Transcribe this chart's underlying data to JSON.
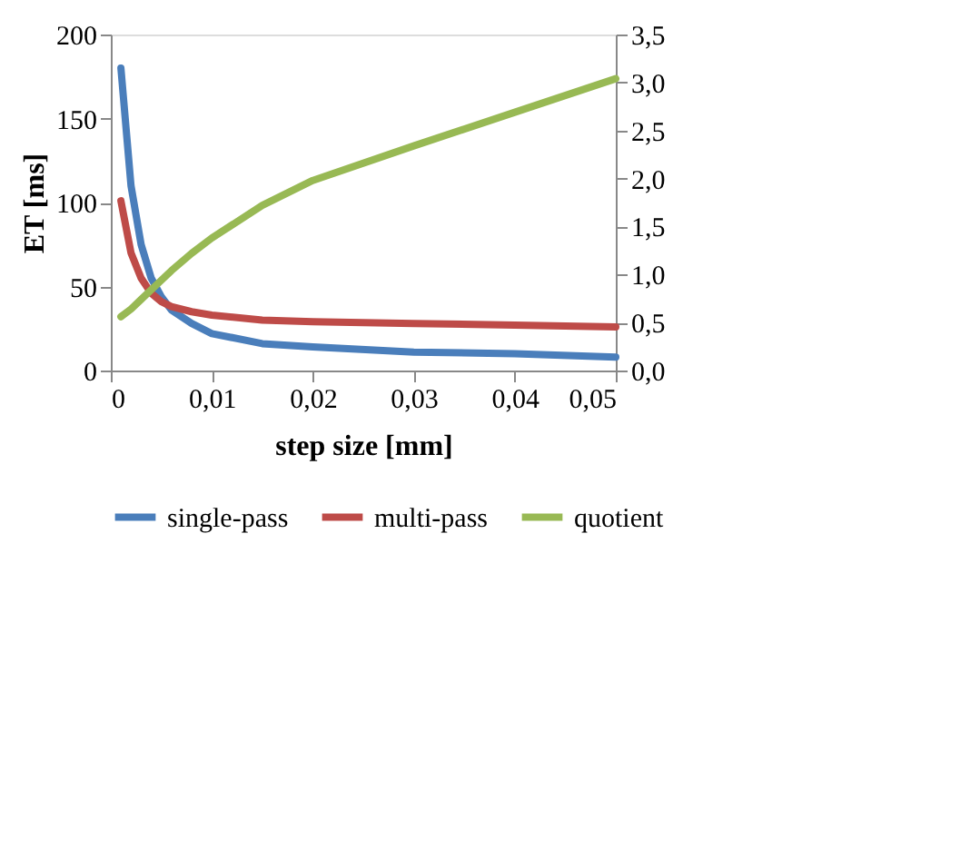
{
  "chart_data": {
    "type": "line",
    "xlabel": "step size [mm]",
    "ylabel": "ET [ms]",
    "x": [
      0.001,
      0.002,
      0.003,
      0.004,
      0.005,
      0.006,
      0.008,
      0.01,
      0.015,
      0.02,
      0.03,
      0.04,
      0.05
    ],
    "series": [
      {
        "name": "single-pass",
        "color": "#4a7ebb",
        "values": [
          180,
          110,
          75,
          55,
          44,
          36,
          28,
          22,
          16,
          14,
          11,
          10,
          8
        ]
      },
      {
        "name": "multi-pass",
        "color": "#be4b48",
        "values": [
          101,
          70,
          55,
          46,
          41,
          38,
          35,
          33,
          30,
          29,
          28,
          27,
          26
        ]
      },
      {
        "name": "quotient",
        "color": "#98b954",
        "axis": "y2",
        "values": [
          0.56,
          0.64,
          0.74,
          0.84,
          0.94,
          1.04,
          1.22,
          1.38,
          1.72,
          1.98,
          2.34,
          2.69,
          3.04
        ]
      }
    ],
    "xlim": [
      0,
      0.05
    ],
    "xticks": [
      0,
      {
        "value": 0.01,
        "label": "0,01"
      },
      {
        "value": 0.02,
        "label": "0,02"
      },
      {
        "value": 0.03,
        "label": "0,03"
      },
      {
        "value": 0.04,
        "label": "0,04"
      },
      {
        "value": 0.05,
        "label": "0,05"
      }
    ],
    "ylim": [
      0,
      200
    ],
    "yticks": [
      0,
      50,
      100,
      150,
      200
    ],
    "y2lim": [
      0,
      3.5
    ],
    "y2ticks": [
      {
        "value": 0,
        "label": "0,0"
      },
      {
        "value": 0.5,
        "label": "0,5"
      },
      {
        "value": 1,
        "label": "1,0"
      },
      {
        "value": 1.5,
        "label": "1,5"
      },
      {
        "value": 2,
        "label": "2,0"
      },
      {
        "value": 2.5,
        "label": "2,5"
      },
      {
        "value": 3,
        "label": "3,0"
      },
      {
        "value": 3.5,
        "label": "3,5"
      }
    ],
    "grid": false,
    "legend": "bottom",
    "marker": "none",
    "line_style": "solid"
  }
}
